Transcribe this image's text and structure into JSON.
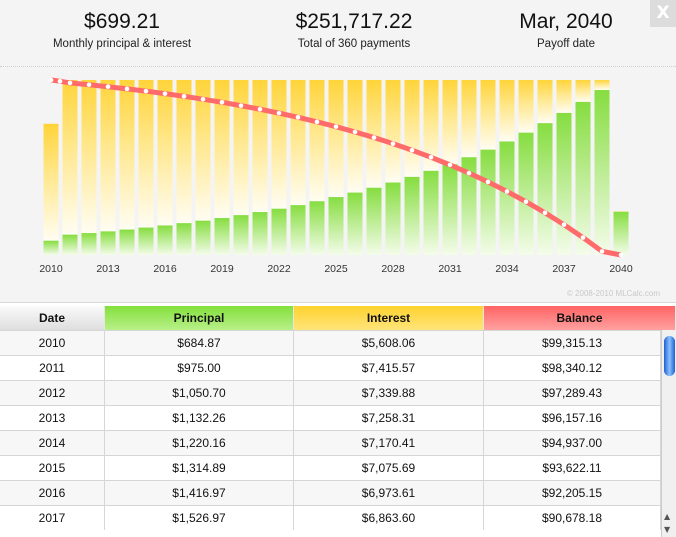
{
  "summary": [
    {
      "value": "$699.21",
      "label": "Monthly principal & interest"
    },
    {
      "value": "$251,717.22",
      "label": "Total of 360 payments"
    },
    {
      "value": "Mar, 2040",
      "label": "Payoff date"
    }
  ],
  "close_label": "X",
  "copyright": "© 2008-2010 MLCalc.com",
  "colors": {
    "principal": "#8ee04a",
    "interest": "#ffd43a",
    "balance": "#ff6b6b"
  },
  "chart_data": {
    "type": "bar",
    "stacked": true,
    "categories": [
      2010,
      2011,
      2012,
      2013,
      2014,
      2015,
      2016,
      2017,
      2018,
      2019,
      2020,
      2021,
      2022,
      2023,
      2024,
      2025,
      2026,
      2027,
      2028,
      2029,
      2030,
      2031,
      2032,
      2033,
      2034,
      2035,
      2036,
      2037,
      2038,
      2039,
      2040
    ],
    "tick_labels": [
      "2010",
      "2013",
      "2016",
      "2019",
      "2022",
      "2025",
      "2028",
      "2031",
      "2034",
      "2037",
      "2040"
    ],
    "series": [
      {
        "key": "principal",
        "values": [
          684.87,
          975.0,
          1050.7,
          1132.26,
          1220.16,
          1314.89,
          1416.97,
          1526.97,
          1645.5,
          1773.2,
          1910.9,
          2059.2,
          2219.1,
          2391.4,
          2577.0,
          2777.1,
          2992.7,
          3225.0,
          3475.4,
          3745.2,
          4036.0,
          4349.3,
          4687.0,
          5050.9,
          5443.0,
          5865.5,
          6320.9,
          6811.6,
          7340.4,
          7910.3,
          2071.6
        ]
      },
      {
        "key": "interest",
        "values": [
          5608.06,
          7415.57,
          7339.88,
          7258.31,
          7170.41,
          7075.69,
          6973.61,
          6863.6,
          6745.0,
          6617.3,
          6479.6,
          6331.3,
          6171.4,
          5999.1,
          5813.5,
          5613.4,
          5397.8,
          5165.5,
          4915.1,
          4645.3,
          4354.5,
          4041.2,
          3703.5,
          3339.6,
          2947.5,
          2525.0,
          2069.6,
          1578.9,
          1050.1,
          480.2,
          26.0
        ]
      },
      {
        "key": "balance",
        "type": "line",
        "start": 100000,
        "values": [
          99315.13,
          98340.12,
          97289.43,
          96157.16,
          94937.0,
          93622.11,
          92205.15,
          90678.18,
          89032.7,
          87259.5,
          85348.6,
          83289.4,
          81070.3,
          78678.9,
          76101.9,
          73324.8,
          70332.1,
          67107.1,
          63631.7,
          59886.5,
          55850.5,
          51501.2,
          46814.2,
          41763.3,
          36320.3,
          30454.8,
          24133.9,
          17322.3,
          9981.9,
          2071.6,
          0
        ]
      }
    ],
    "ylim": [
      0,
      100000
    ]
  },
  "table": {
    "headers": [
      "Date",
      "Principal",
      "Interest",
      "Balance"
    ],
    "rows": [
      [
        "2010",
        "$684.87",
        "$5,608.06",
        "$99,315.13"
      ],
      [
        "2011",
        "$975.00",
        "$7,415.57",
        "$98,340.12"
      ],
      [
        "2012",
        "$1,050.70",
        "$7,339.88",
        "$97,289.43"
      ],
      [
        "2013",
        "$1,132.26",
        "$7,258.31",
        "$96,157.16"
      ],
      [
        "2014",
        "$1,220.16",
        "$7,170.41",
        "$94,937.00"
      ],
      [
        "2015",
        "$1,314.89",
        "$7,075.69",
        "$93,622.11"
      ],
      [
        "2016",
        "$1,416.97",
        "$6,973.61",
        "$92,205.15"
      ],
      [
        "2017",
        "$1,526.97",
        "$6,863.60",
        "$90,678.18"
      ]
    ]
  }
}
